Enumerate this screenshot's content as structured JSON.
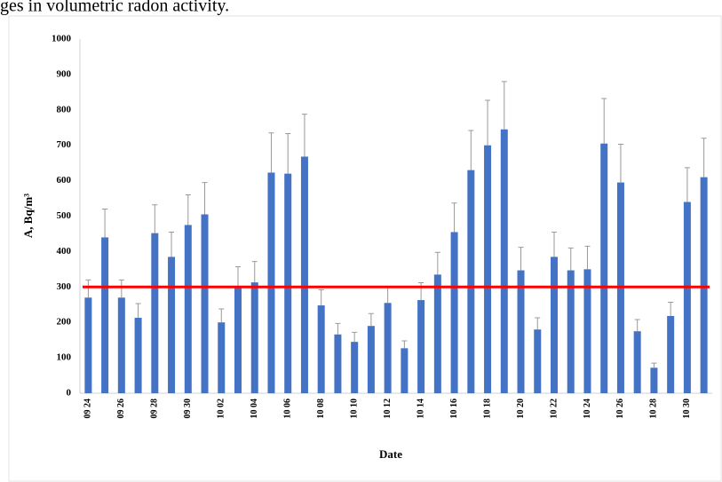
{
  "caption": "ges in volumetric radon activity.",
  "chart_data": {
    "type": "bar",
    "xlabel": "Date",
    "ylabel": "A, Bq/m³",
    "categories": [
      "09 24",
      null,
      "09 26",
      null,
      "09 28",
      null,
      "09 30",
      null,
      "10 02",
      null,
      "10 04",
      null,
      "10 06",
      null,
      "10 08",
      null,
      "10 10",
      null,
      "10 12",
      null,
      "10 14",
      null,
      "10 16",
      null,
      "10 18",
      null,
      "10 20",
      null,
      "10 22",
      null,
      "10 24",
      null,
      "10 26",
      null,
      "10 28",
      null,
      "10 30",
      null
    ],
    "values": [
      270,
      440,
      270,
      213,
      452,
      385,
      475,
      505,
      200,
      297,
      313,
      623,
      620,
      668,
      248,
      166,
      145,
      190,
      255,
      127,
      263,
      335,
      455,
      630,
      700,
      745,
      347,
      180,
      385,
      347,
      350,
      705,
      595,
      175,
      72,
      218,
      540,
      610
    ],
    "errors": [
      50,
      80,
      50,
      40,
      80,
      70,
      85,
      90,
      38,
      60,
      59,
      112,
      113,
      120,
      44,
      31,
      27,
      35,
      45,
      21,
      49,
      63,
      82,
      112,
      127,
      135,
      65,
      33,
      70,
      63,
      65,
      127,
      108,
      33,
      13,
      39,
      97,
      110
    ],
    "color": "#4472c4",
    "reference_line": {
      "value": 300,
      "color": "#ff0000"
    },
    "ylim": [
      0,
      1000
    ],
    "yticks": [
      0,
      100,
      200,
      300,
      400,
      500,
      600,
      700,
      800,
      900,
      1000
    ],
    "grid": false
  }
}
